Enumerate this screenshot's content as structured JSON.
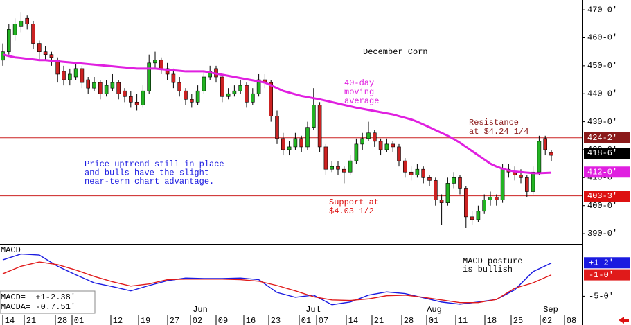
{
  "chart_data": [
    {
      "type": "candlestick",
      "title": "December Corn",
      "annotations": {
        "ma_label": [
          "40-day",
          "moving",
          "average"
        ],
        "resistance": [
          "Resistance",
          "at $4.24 1/4"
        ],
        "support": [
          "Support at",
          "$4.03 1/2"
        ],
        "comment": [
          "Price uptrend still in place",
          "and bulls have the slight",
          "near-term chart advantage."
        ]
      },
      "x_labels": [
        "14",
        "21",
        "28",
        "01",
        "12",
        "19",
        "27",
        "02",
        "09",
        "16",
        "23",
        "01",
        "07",
        "14",
        "21",
        "28",
        "01",
        "11",
        "18",
        "25",
        "02",
        "08"
      ],
      "months": [
        "Jun",
        "Jul",
        "Aug",
        "Sep"
      ],
      "candles": [
        [
          452,
          458,
          450,
          455
        ],
        [
          455,
          465,
          454,
          463
        ],
        [
          461,
          467,
          459,
          465
        ],
        [
          464,
          469,
          462,
          466
        ],
        [
          467,
          468,
          463,
          465
        ],
        [
          465,
          466,
          456,
          458
        ],
        [
          458,
          459,
          452,
          455
        ],
        [
          455,
          457,
          452,
          454
        ],
        [
          454,
          455,
          450,
          453
        ],
        [
          452,
          453,
          444,
          447
        ],
        [
          448,
          450,
          443,
          445
        ],
        [
          445,
          449,
          443,
          447
        ],
        [
          446,
          451,
          445,
          449
        ],
        [
          449,
          450,
          442,
          444
        ],
        [
          445,
          446,
          440,
          442
        ],
        [
          442,
          446,
          441,
          444
        ],
        [
          444,
          445,
          438,
          440
        ],
        [
          440,
          445,
          439,
          443
        ],
        [
          442,
          447,
          441,
          444
        ],
        [
          444,
          445,
          438,
          440
        ],
        [
          441,
          442,
          437,
          439
        ],
        [
          439,
          441,
          435,
          437
        ],
        [
          437,
          440,
          434,
          436
        ],
        [
          436,
          443,
          435,
          441
        ],
        [
          441,
          454,
          440,
          451
        ],
        [
          451,
          455,
          449,
          452
        ],
        [
          452,
          453,
          447,
          449
        ],
        [
          449,
          451,
          445,
          447
        ],
        [
          447,
          449,
          442,
          444
        ],
        [
          444,
          446,
          439,
          441
        ],
        [
          441,
          442,
          436,
          438
        ],
        [
          438,
          440,
          435,
          437
        ],
        [
          437,
          443,
          436,
          441
        ],
        [
          441,
          448,
          440,
          446
        ],
        [
          446,
          450,
          445,
          448
        ],
        [
          449,
          450,
          444,
          446
        ],
        [
          446,
          447,
          437,
          439
        ],
        [
          439,
          442,
          438,
          440
        ],
        [
          440,
          443,
          439,
          441
        ],
        [
          441,
          445,
          440,
          443
        ],
        [
          443,
          444,
          435,
          437
        ],
        [
          437,
          442,
          436,
          440
        ],
        [
          440,
          447,
          439,
          445
        ],
        [
          445,
          447,
          442,
          444
        ],
        [
          444,
          445,
          430,
          432
        ],
        [
          432,
          434,
          422,
          424
        ],
        [
          424,
          426,
          418,
          420
        ],
        [
          420,
          423,
          418,
          421
        ],
        [
          421,
          426,
          420,
          424
        ],
        [
          424,
          425,
          419,
          421
        ],
        [
          421,
          430,
          420,
          428
        ],
        [
          428,
          442,
          427,
          436
        ],
        [
          436,
          437,
          419,
          421
        ],
        [
          421,
          422,
          411,
          413
        ],
        [
          413,
          416,
          412,
          414
        ],
        [
          414,
          416,
          411,
          413
        ],
        [
          413,
          414,
          408,
          412
        ],
        [
          412,
          418,
          411,
          416
        ],
        [
          416,
          424,
          415,
          422
        ],
        [
          422,
          426,
          420,
          424
        ],
        [
          424,
          430,
          423,
          426
        ],
        [
          426,
          427,
          421,
          423
        ],
        [
          423,
          424,
          418,
          420
        ],
        [
          420,
          424,
          419,
          422
        ],
        [
          422,
          423,
          419,
          421
        ],
        [
          421,
          422,
          414,
          416
        ],
        [
          416,
          417,
          410,
          412
        ],
        [
          412,
          414,
          409,
          411
        ],
        [
          411,
          415,
          410,
          413
        ],
        [
          413,
          414,
          408,
          410
        ],
        [
          410,
          411,
          407,
          409
        ],
        [
          409,
          410,
          400,
          402
        ],
        [
          402,
          404,
          393,
          401
        ],
        [
          401,
          410,
          400,
          408
        ],
        [
          408,
          412,
          406,
          410
        ],
        [
          410,
          411,
          404,
          406
        ],
        [
          406,
          407,
          392,
          396
        ],
        [
          396,
          398,
          393,
          395
        ],
        [
          395,
          400,
          394,
          398
        ],
        [
          398,
          404,
          397,
          402
        ],
        [
          402,
          405,
          400,
          403
        ],
        [
          403,
          404,
          400,
          402
        ],
        [
          402,
          415,
          401,
          413
        ],
        [
          413,
          415,
          410,
          412
        ],
        [
          412,
          414,
          409,
          411
        ],
        [
          411,
          413,
          408,
          410
        ],
        [
          410,
          411,
          403,
          405
        ],
        [
          405,
          414,
          404,
          412
        ],
        [
          412,
          425,
          411,
          423
        ],
        [
          424,
          425,
          418,
          420
        ],
        [
          419,
          420,
          416,
          418
        ]
      ],
      "up_color": "#22b422",
      "down_color": "#cc2222",
      "moving_average": {
        "color": "#e020e0",
        "values": [
          454,
          453.5,
          453,
          452.8,
          452.5,
          452.3,
          452,
          452,
          451.8,
          451.6,
          451.4,
          451.2,
          451,
          450.8,
          450.6,
          450.4,
          450.2,
          450,
          449.8,
          449.6,
          449.4,
          449.2,
          449,
          449,
          449,
          449,
          448.8,
          448.6,
          448.4,
          448.2,
          448,
          448,
          448,
          448,
          447.6,
          447.2,
          446.8,
          446.4,
          446,
          445.6,
          445.2,
          444.8,
          444.4,
          444,
          443,
          442,
          441,
          440.4,
          439.8,
          439.2,
          438.8,
          438.4,
          438,
          437.5,
          437,
          436.5,
          436,
          435.5,
          435,
          434.6,
          434.2,
          433.8,
          433.4,
          433,
          432.6,
          432,
          431.4,
          430.8,
          430,
          429,
          428,
          427,
          426,
          425,
          423.8,
          422.5,
          421,
          419.5,
          418,
          416.5,
          415,
          414,
          413.2,
          412.6,
          412.2,
          412,
          411.8,
          411.6,
          411.6,
          411.7,
          411.8
        ]
      },
      "hlines": [
        {
          "value": 424.25,
          "color": "#cc2222"
        },
        {
          "value": 403.5,
          "color": "#cc2222"
        }
      ],
      "price_labels": [
        {
          "value": 424.25,
          "label": "424-2'",
          "color": "#8b1a1a"
        },
        {
          "value": 418.75,
          "label": "418-6'",
          "color": "#000000"
        },
        {
          "value": 412,
          "label": "412-0'",
          "color": "#e020e0"
        },
        {
          "value": 403.375,
          "label": "403-3'",
          "color": "#dd1111"
        }
      ],
      "ylim": [
        386.3,
        473.5
      ],
      "yticks": [
        {
          "value": 390,
          "label": "390-0'"
        },
        {
          "value": 400,
          "label": "400-0'"
        },
        {
          "value": 410,
          "label": "410-0'"
        },
        {
          "value": 420,
          "label": "420-0'"
        },
        {
          "value": 430,
          "label": "430-0'"
        },
        {
          "value": 440,
          "label": "440-0'"
        },
        {
          "value": 450,
          "label": "450-0'"
        },
        {
          "value": 460,
          "label": "460-0'"
        },
        {
          "value": 470,
          "label": "470-0'"
        }
      ]
    },
    {
      "type": "line",
      "title": "MACD",
      "annotation": [
        "MACD posture",
        "is bullish"
      ],
      "readouts": [
        "MACD=  +1-2.38'",
        "MACDA= -0.7.51'"
      ],
      "x": [
        0,
        3,
        6,
        9,
        12,
        15,
        18,
        21,
        24,
        27,
        30,
        33,
        36,
        39,
        42,
        45,
        48,
        51,
        54,
        57,
        60,
        63,
        66,
        69,
        72,
        75,
        78,
        81,
        84,
        87,
        90
      ],
      "series": [
        {
          "name": "MACD",
          "color": "#1a1ae0",
          "values": [
            1.8,
            2.9,
            2.7,
            0.6,
            -1.0,
            -2.5,
            -3.2,
            -4.0,
            -3.0,
            -2.1,
            -1.6,
            -1.7,
            -1.7,
            -1.6,
            -1.9,
            -4.3,
            -5.2,
            -4.8,
            -6.6,
            -6.1,
            -4.8,
            -4.2,
            -4.5,
            -5.3,
            -6.1,
            -6.5,
            -6.1,
            -5.6,
            -3.8,
            -0.4,
            1.2
          ]
        },
        {
          "name": "MACDA",
          "color": "#e01a1a",
          "values": [
            -0.8,
            0.6,
            1.4,
            0.9,
            -0.1,
            -1.3,
            -2.3,
            -3.1,
            -2.7,
            -1.9,
            -1.8,
            -1.8,
            -1.8,
            -1.9,
            -2.2,
            -3.0,
            -4.0,
            -5.1,
            -5.7,
            -5.8,
            -5.5,
            -4.9,
            -4.8,
            -5.2,
            -5.7,
            -6.2,
            -6.2,
            -5.6,
            -3.5,
            -2.5,
            -1.0
          ]
        }
      ],
      "value_boxes": [
        {
          "value": 1.25,
          "label": "+1-2'",
          "color": "#1a1ae0"
        },
        {
          "value": -1,
          "label": "-1-0'",
          "color": "#e01a1a"
        }
      ],
      "ylim": [
        -10.4,
        4.4
      ],
      "yticks": [
        {
          "value": -5,
          "label": "-5-0'"
        }
      ]
    }
  ]
}
